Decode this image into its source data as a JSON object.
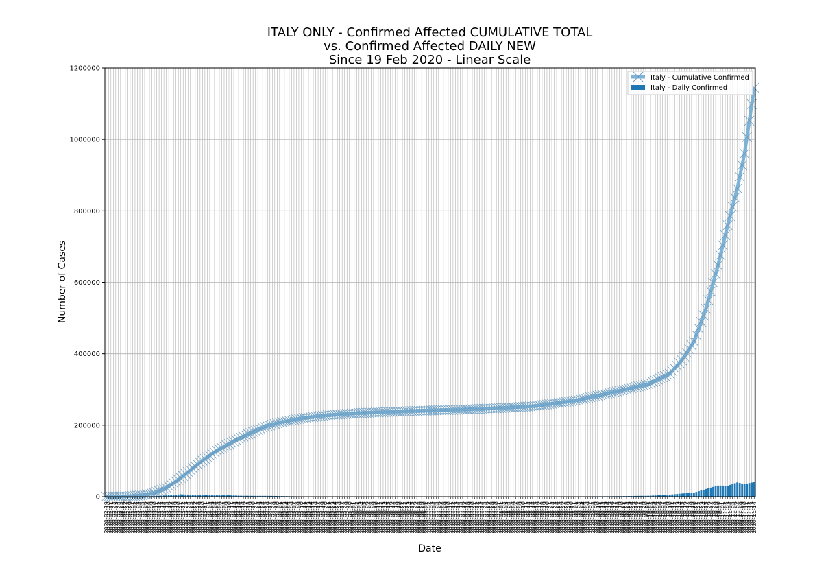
{
  "chart_data": {
    "type": "line",
    "title_lines": [
      "ITALY ONLY - Confirmed Affected CUMULATIVE TOTAL",
      "vs. Confirmed Affected DAILY NEW",
      "Since 19 Feb 2020 - Linear Scale"
    ],
    "xlabel": "Date",
    "ylabel": "Number of Cases",
    "ylim": [
      0,
      1200000
    ],
    "yticks": [
      0,
      200000,
      400000,
      600000,
      800000,
      1000000,
      1200000
    ],
    "x_start": "2020-02-19",
    "x_end": "2020-11-14",
    "x_tick_every_days": 1,
    "grid": true,
    "legend_position": "top-right",
    "colors": {
      "cumulative": "#7fb3d5",
      "cumulative_marker": "#6a9ec4",
      "daily": "#1f77b4",
      "grid": "#b0b0b0"
    },
    "series": [
      {
        "name": "Italy - Cumulative Confirmed",
        "kind": "line",
        "marker": "x",
        "points": [
          [
            "2020-02-19",
            3
          ],
          [
            "2020-02-25",
            322
          ],
          [
            "2020-03-01",
            1694
          ],
          [
            "2020-03-05",
            3858
          ],
          [
            "2020-03-10",
            10149
          ],
          [
            "2020-03-15",
            24747
          ],
          [
            "2020-03-20",
            47021
          ],
          [
            "2020-03-25",
            74386
          ],
          [
            "2020-03-31",
            105792
          ],
          [
            "2020-04-05",
            128948
          ],
          [
            "2020-04-10",
            147577
          ],
          [
            "2020-04-15",
            165155
          ],
          [
            "2020-04-20",
            181228
          ],
          [
            "2020-04-25",
            195351
          ],
          [
            "2020-05-01",
            207428
          ],
          [
            "2020-05-10",
            219070
          ],
          [
            "2020-05-20",
            227364
          ],
          [
            "2020-06-01",
            233197
          ],
          [
            "2020-06-15",
            237290
          ],
          [
            "2020-07-01",
            240760
          ],
          [
            "2020-07-15",
            243344
          ],
          [
            "2020-08-01",
            248070
          ],
          [
            "2020-08-15",
            253438
          ],
          [
            "2020-09-01",
            269214
          ],
          [
            "2020-09-15",
            289990
          ],
          [
            "2020-10-01",
            314861
          ],
          [
            "2020-10-10",
            343770
          ],
          [
            "2020-10-15",
            381602
          ],
          [
            "2020-10-20",
            434449
          ],
          [
            "2020-10-25",
            525782
          ],
          [
            "2020-10-30",
            647674
          ],
          [
            "2020-11-03",
            759829
          ],
          [
            "2020-11-07",
            862681
          ],
          [
            "2020-11-10",
            960373
          ],
          [
            "2020-11-14",
            1144552
          ]
        ]
      },
      {
        "name": "Italy - Daily Confirmed",
        "kind": "bar",
        "points": [
          [
            "2020-02-19",
            3
          ],
          [
            "2020-02-25",
            100
          ],
          [
            "2020-03-01",
            570
          ],
          [
            "2020-03-05",
            770
          ],
          [
            "2020-03-10",
            1800
          ],
          [
            "2020-03-15",
            3590
          ],
          [
            "2020-03-21",
            6560
          ],
          [
            "2020-03-25",
            5210
          ],
          [
            "2020-03-31",
            4050
          ],
          [
            "2020-04-05",
            4320
          ],
          [
            "2020-04-10",
            3950
          ],
          [
            "2020-04-15",
            2670
          ],
          [
            "2020-04-20",
            2260
          ],
          [
            "2020-04-25",
            2360
          ],
          [
            "2020-05-01",
            1870
          ],
          [
            "2020-05-10",
            800
          ],
          [
            "2020-05-20",
            670
          ],
          [
            "2020-06-01",
            180
          ],
          [
            "2020-06-15",
            300
          ],
          [
            "2020-07-01",
            180
          ],
          [
            "2020-07-15",
            160
          ],
          [
            "2020-08-01",
            380
          ],
          [
            "2020-08-15",
            630
          ],
          [
            "2020-09-01",
            980
          ],
          [
            "2020-09-15",
            1230
          ],
          [
            "2020-10-01",
            2550
          ],
          [
            "2020-10-10",
            5720
          ],
          [
            "2020-10-15",
            8800
          ],
          [
            "2020-10-20",
            11000
          ],
          [
            "2020-10-25",
            21270
          ],
          [
            "2020-10-30",
            31080
          ],
          [
            "2020-11-03",
            30550
          ],
          [
            "2020-11-07",
            39810
          ],
          [
            "2020-11-10",
            35100
          ],
          [
            "2020-11-14",
            40900
          ]
        ]
      }
    ]
  }
}
